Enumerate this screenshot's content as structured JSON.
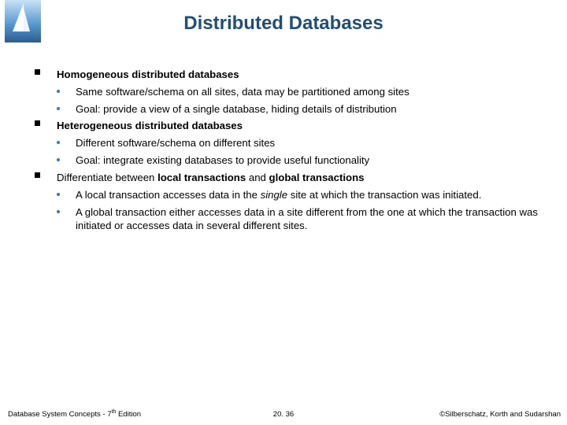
{
  "colors": {
    "title": "#1f4e79",
    "subbullet": "#3b77b5",
    "text": "#000000",
    "background": "#ffffff"
  },
  "typography": {
    "title_fontsize": 24,
    "body_fontsize": 13.2,
    "footer_fontsize": 9.5,
    "font_family": "Arial"
  },
  "slide": {
    "title": "Distributed Databases",
    "items": [
      {
        "heading": "Homogeneous distributed databases",
        "subs": [
          "Same software/schema on all sites, data may be partitioned among sites",
          "Goal: provide a view of a single database, hiding details of distribution"
        ]
      },
      {
        "heading": "Heterogeneous distributed databases",
        "subs": [
          "Different software/schema on different sites",
          "Goal: integrate existing databases to provide useful functionality"
        ]
      },
      {
        "heading_pre": "Differentiate between ",
        "heading_bold1": "local transactions",
        "heading_mid": " and ",
        "heading_bold2": "global transactions",
        "subs_rich": [
          {
            "pre": "A local transaction accesses data in the ",
            "italic": "single",
            "post": " site at which the transaction was initiated."
          },
          {
            "text": "A global transaction either accesses data in a site different from the one at which the transaction was initiated or accesses data in several different sites."
          }
        ]
      }
    ]
  },
  "footer": {
    "left_pre": "Database System Concepts - 7",
    "left_sup": "th",
    "left_post": " Edition",
    "center": "20. 36",
    "right": "©Silberschatz, Korth and Sudarshan"
  }
}
